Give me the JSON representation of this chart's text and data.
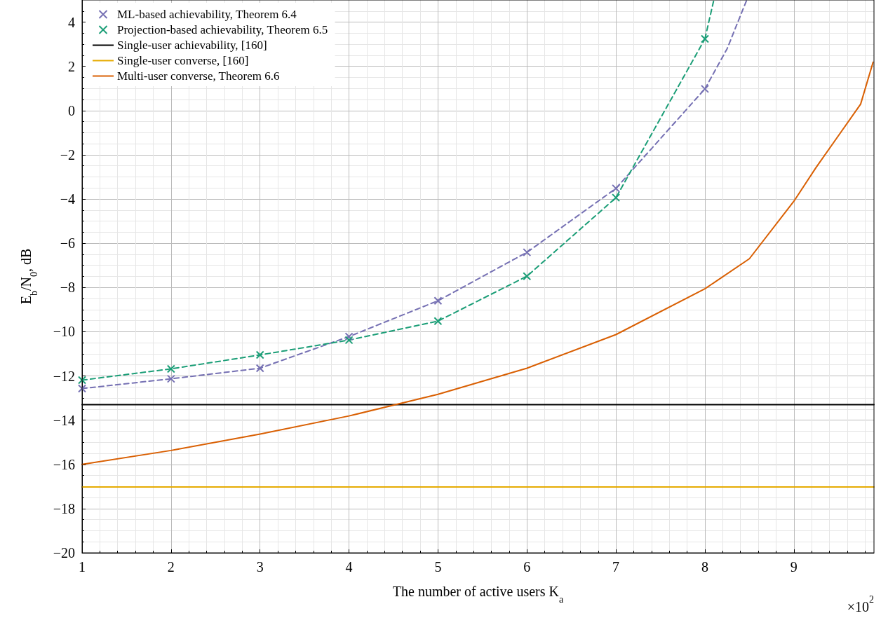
{
  "chart_data": {
    "type": "line",
    "xlabel": "The number of active users K$_{a}$",
    "ylabel": "E$_{b}$/N$_{0}$, dB",
    "xlim": [
      1,
      9.9
    ],
    "xticks": [
      1,
      2,
      3,
      4,
      5,
      6,
      7,
      8,
      9
    ],
    "ylim": [
      -20,
      5
    ],
    "yticks": [
      -20,
      -18,
      -16,
      -14,
      -12,
      -10,
      -8,
      -6,
      -4,
      -2,
      0,
      2,
      4
    ],
    "grid": true,
    "legend": "top left",
    "annotations": [
      "×10$^{2}$"
    ],
    "series": [
      {
        "name": "ML-based achievability, Theorem 6.4",
        "color": "#7570b3",
        "marker": "cross",
        "line_style": "dashed",
        "x": [
          1,
          2,
          3,
          4,
          5,
          6,
          7,
          8
        ],
        "values": [
          -12.57,
          -12.13,
          -11.65,
          -10.22,
          -8.6,
          -6.41,
          -3.52,
          0.98
        ]
      },
      {
        "name": "Projection-based achievability, Theorem 6.5",
        "color": "#1b9e77",
        "marker": "cross",
        "line_style": "dashed",
        "x": [
          1,
          2,
          3,
          4,
          5,
          6,
          7,
          8
        ],
        "values": [
          -12.19,
          -11.68,
          -11.05,
          -10.38,
          -9.52,
          -7.49,
          -3.94,
          3.24
        ]
      },
      {
        "name": "Single-user achievability, [160]",
        "color": "#000000",
        "marker": "none",
        "line_style": "solid",
        "x": [
          1,
          9.9
        ],
        "values": [
          -13.3,
          -13.3
        ]
      },
      {
        "name": "Single-user converse, [160]",
        "color": "#e6ab02",
        "marker": "none",
        "line_style": "solid",
        "x": [
          1,
          9.9
        ],
        "values": [
          -17.02,
          -17.02
        ]
      },
      {
        "name": "Multi-user converse, Theorem 6.6",
        "color": "#d95f02",
        "marker": "none",
        "line_style": "solid",
        "x": [
          1,
          2,
          3,
          4,
          5,
          6,
          7,
          8,
          8.5,
          9,
          9.25,
          9.5,
          9.75,
          9.89
        ],
        "values": [
          -16.0,
          -15.37,
          -14.63,
          -13.81,
          -12.83,
          -11.65,
          -10.13,
          -8.06,
          -6.7,
          -4.1,
          -2.57,
          -1.14,
          0.29,
          2.19
        ]
      },
      {
        "color": "#7570b3",
        "marker": "none",
        "line_style": "dashed",
        "x": [
          8,
          8.25,
          8.47
        ],
        "values": [
          0.98,
          2.8,
          5
        ]
      },
      {
        "color": "#1b9e77",
        "marker": "none",
        "line_style": "dashed",
        "x": [
          8,
          8.1
        ],
        "values": [
          3.24,
          5
        ]
      }
    ]
  }
}
